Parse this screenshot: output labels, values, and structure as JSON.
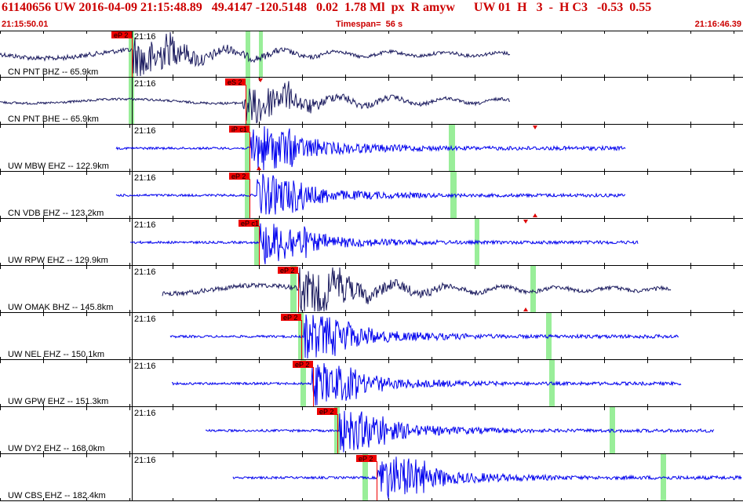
{
  "header": {
    "title": "61140656 UW 2016-04-09 21:15:48.89   49.4147 -120.5148   0.02  1.78 Ml  px  R amyw      UW 01  H   3  -  H C3   -0.53  0.55",
    "start_time": "21:15:50.01",
    "timespan": "Timespan=  56 s",
    "end_time": "21:16:46.39"
  },
  "colors": {
    "broadband_trace": "#1a1a5e",
    "shortperiod_trace": "#0000ee",
    "pick_box": "#ee0000",
    "pick_window": "#99ee99",
    "header_text": "#cc0000",
    "grid": "#000000"
  },
  "rows": [
    {
      "station": "CN PNT BHZ -- 65.9km",
      "time_mark": "21:16",
      "pick": "eP 2",
      "trace_color": "broadband_trace",
      "trace_kind": "broadband"
    },
    {
      "station": "CN PNT BHE -- 65.9km",
      "time_mark": "21:16",
      "pick": "eS 2",
      "trace_color": "broadband_trace",
      "trace_kind": "broadband"
    },
    {
      "station": "UW MBW EHZ -- 122.9km",
      "time_mark": "21:16",
      "pick": "iP c1",
      "trace_color": "shortperiod_trace",
      "trace_kind": "shortperiod"
    },
    {
      "station": "CN VDB EHZ -- 123.2km",
      "time_mark": "21:16",
      "pick": "eP 2",
      "trace_color": "shortperiod_trace",
      "trace_kind": "shortperiod"
    },
    {
      "station": "UW RPW EHZ -- 129.9km",
      "time_mark": "21:16",
      "pick": "eP c1",
      "trace_color": "shortperiod_trace",
      "trace_kind": "shortperiod"
    },
    {
      "station": "UW OMAK BHZ -- 145.8km",
      "time_mark": "21:16",
      "pick": "eP 2",
      "trace_color": "broadband_trace",
      "trace_kind": "broadband"
    },
    {
      "station": "UW NEL EHZ -- 150.1km",
      "time_mark": "21:16",
      "pick": "eP 2",
      "trace_color": "shortperiod_trace",
      "trace_kind": "shortperiod"
    },
    {
      "station": "UW GPW EHZ -- 151.3km",
      "time_mark": "21:16",
      "pick": "eP 2",
      "trace_color": "shortperiod_trace",
      "trace_kind": "shortperiod"
    },
    {
      "station": "UW DY2 EHZ -- 168.0km",
      "time_mark": "21:16",
      "pick": "eP 2",
      "trace_color": "shortperiod_trace",
      "trace_kind": "shortperiod"
    },
    {
      "station": "UW CBS EHZ -- 182.4km",
      "time_mark": "21:16",
      "pick": "eP 2",
      "trace_color": "shortperiod_trace",
      "trace_kind": "shortperiod"
    }
  ]
}
